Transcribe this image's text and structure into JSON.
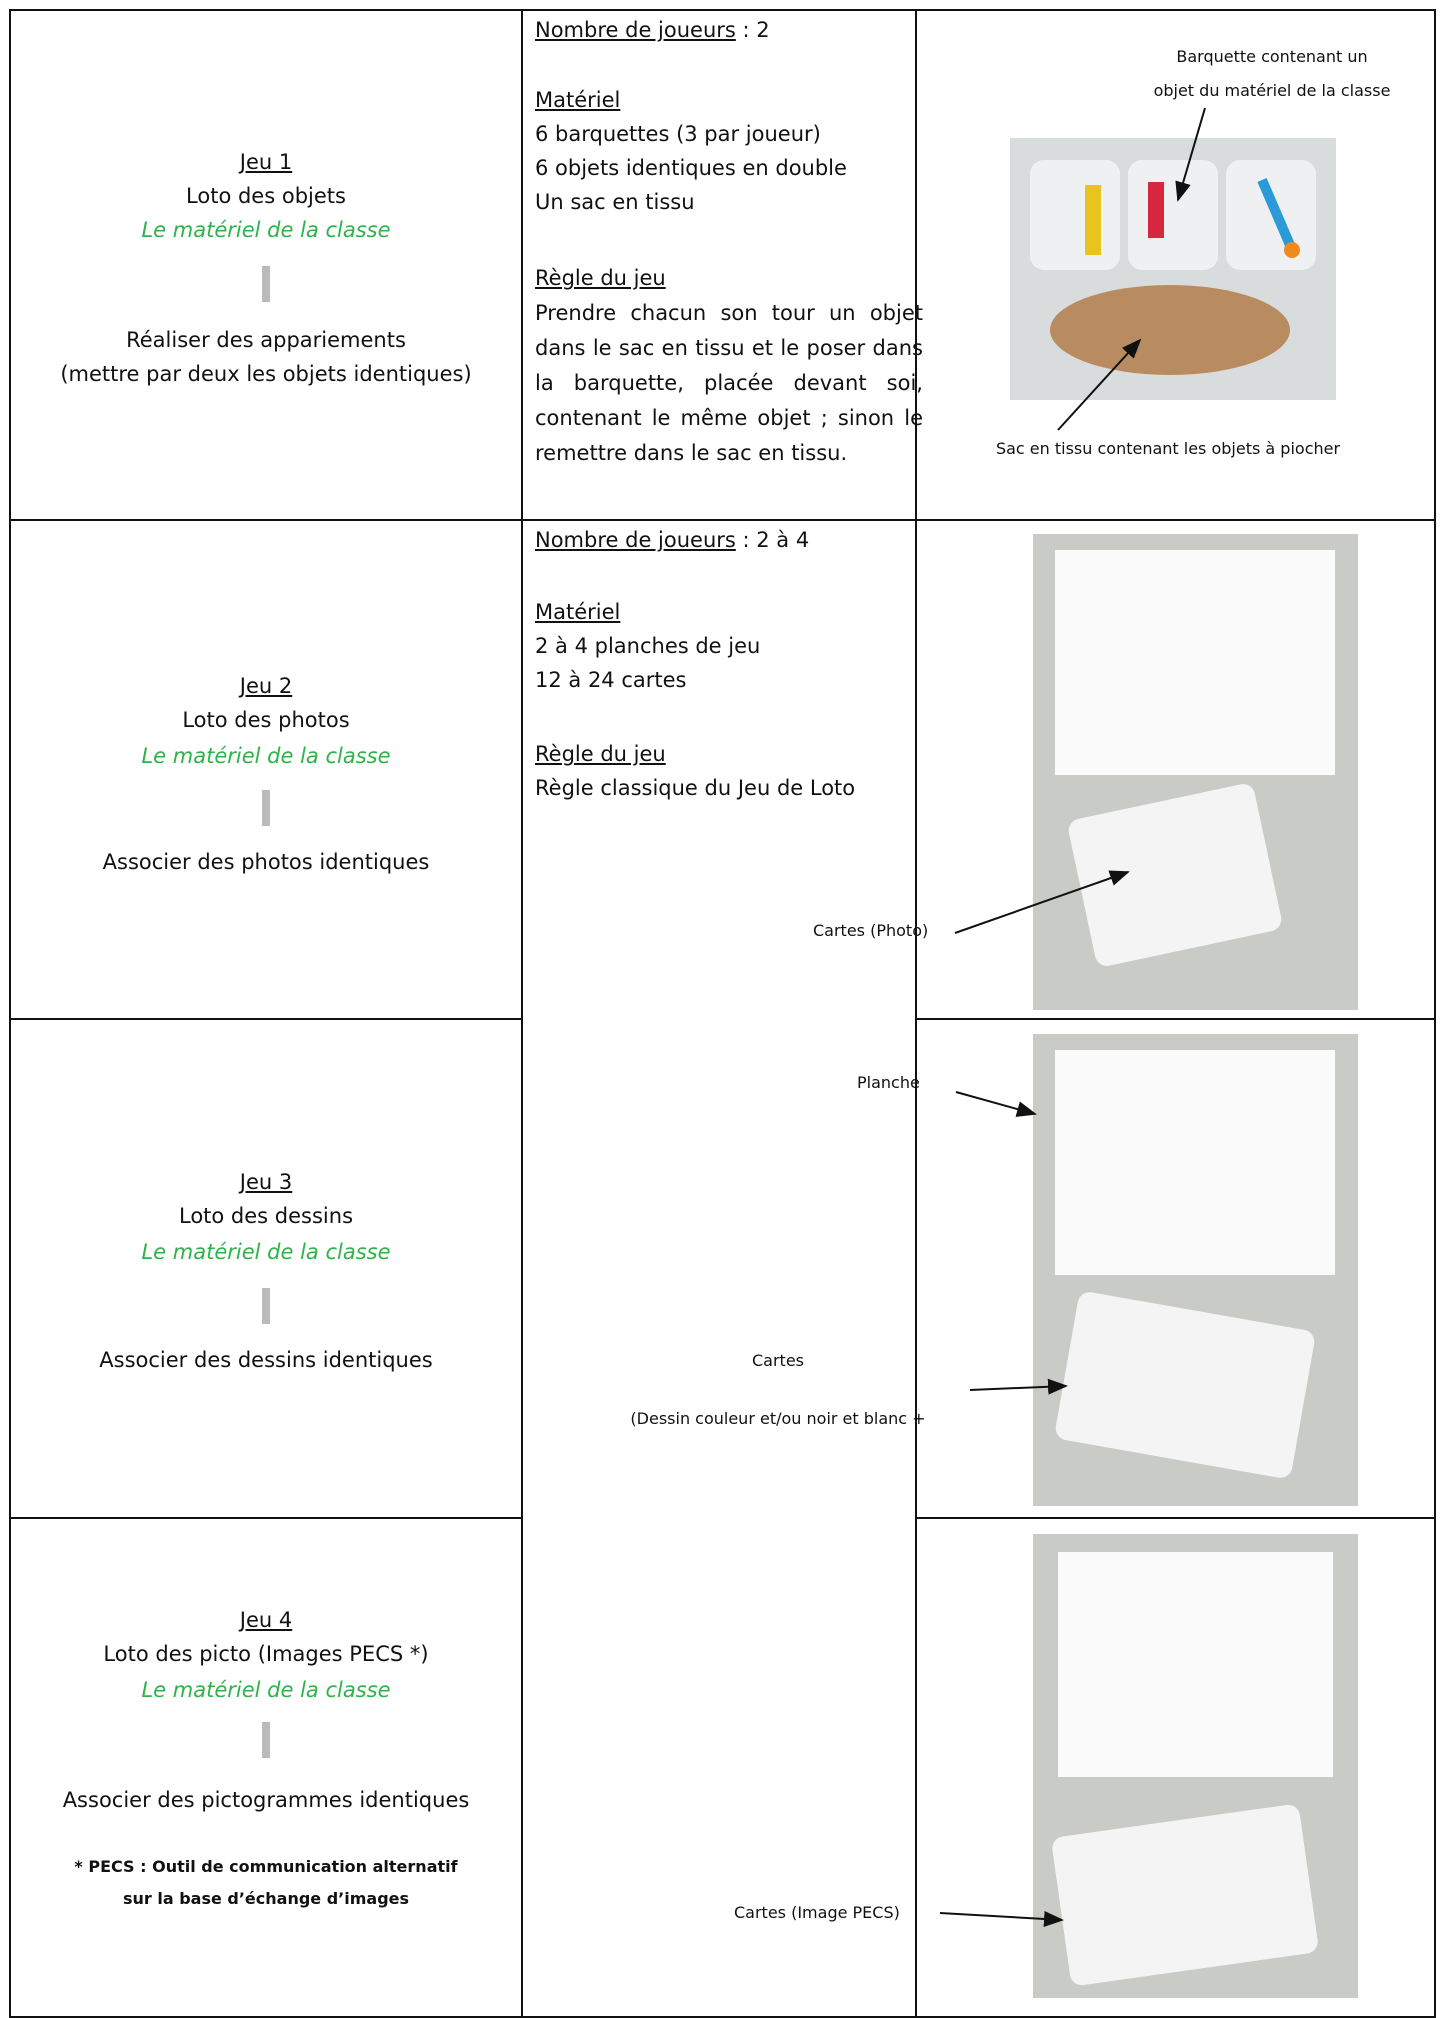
{
  "rows": [
    {
      "game_label": "Jeu 1",
      "game_name": "Loto des objets",
      "material_source": "Le matériel de la classe",
      "objective": "Réaliser des appariements",
      "objective_note": "(mettre par deux les objets identiques)",
      "players_label": "Nombre de joueurs",
      "players": " : 2",
      "material_label": "Matériel",
      "material_items": [
        "6 barquettes (3 par joueur)",
        "6 objets identiques en double",
        "Un sac en tissu"
      ],
      "rule_label": "Règle du jeu",
      "rule": "Prendre chacun son tour un objet dans le sac en tissu et le poser dans la barquette, placée devant soi, contenant le même objet ; sinon le remettre dans le sac en tissu.",
      "annotations": [
        "Barquette contenant un",
        "objet du matériel de la classe",
        "Sac en tissu contenant les objets à piocher"
      ]
    },
    {
      "game_label": "Jeu 2",
      "game_name": "Loto des photos",
      "material_source": "Le matériel de la classe",
      "objective": "Associer des photos identiques",
      "players_label": "Nombre de joueurs",
      "players": " : 2 à 4",
      "material_label": "Matériel",
      "material_items": [
        "2 à 4 planches de jeu",
        "12 à 24 cartes"
      ],
      "rule_label": "Règle du jeu",
      "rule": "Règle classique du Jeu de Loto",
      "annotations": [
        "Cartes (Photo)"
      ]
    },
    {
      "game_label": "Jeu 3",
      "game_name": "Loto des dessins",
      "material_source": "Le matériel de la classe",
      "objective": "Associer des dessins identiques",
      "annotations": [
        "Planche",
        "Cartes",
        "(Dessin couleur et/ou noir et blanc +"
      ]
    },
    {
      "game_label": "Jeu 4",
      "game_name": "Loto des picto (Images PECS *)",
      "material_source": "Le matériel de la classe",
      "objective": "Associer des pictogrammes identiques",
      "footnote": [
        "* PECS : Outil de communication alternatif",
        "sur la base d’échange d’images"
      ],
      "annotations": [
        "Cartes (Image PECS)"
      ]
    }
  ]
}
